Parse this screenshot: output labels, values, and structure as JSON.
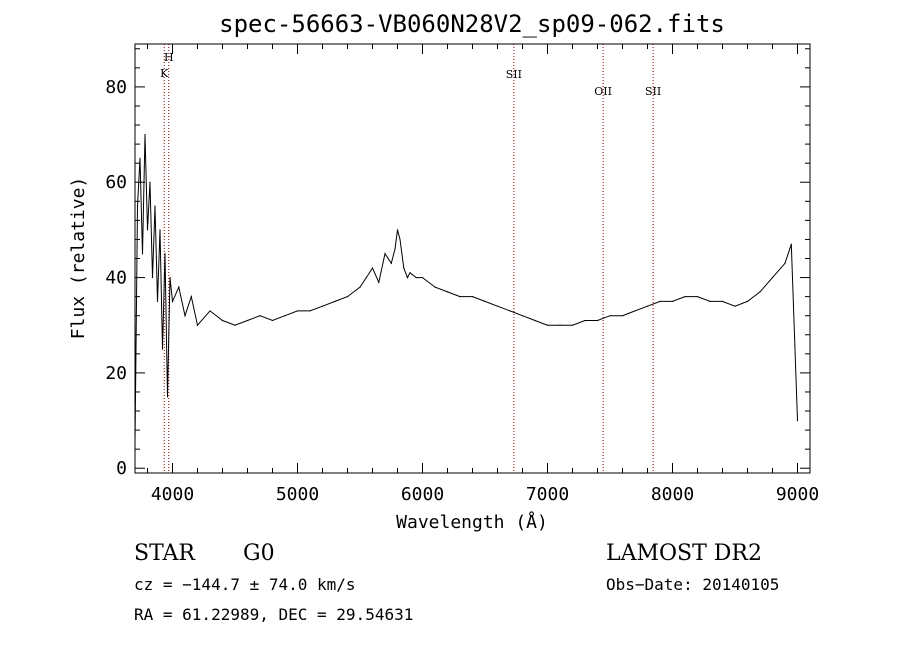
{
  "chart_data": {
    "type": "line",
    "title": "spec-56663-VB060N28V2_sp09-062.fits",
    "xlabel": "Wavelength (Å)",
    "ylabel": "Flux (relative)",
    "xlim": [
      3700,
      9100
    ],
    "ylim": [
      -1,
      89
    ],
    "xticks": [
      4000,
      5000,
      6000,
      7000,
      8000,
      9000
    ],
    "xtick_labels": [
      "4000",
      "5000",
      "6000",
      "7000",
      "8000",
      "9000"
    ],
    "yticks": [
      0,
      20,
      40,
      60,
      80
    ],
    "ytick_labels": [
      "0",
      "20",
      "40",
      "60",
      "80"
    ],
    "grid": false,
    "line_color": "#000000",
    "marker_color": "#8b0000",
    "spectral_lines": [
      {
        "label": "H",
        "wavelength": 3970
      },
      {
        "label": "K",
        "wavelength": 3934
      },
      {
        "label": "SII",
        "wavelength": 6731
      },
      {
        "label": "OII",
        "wavelength": 7445
      },
      {
        "label": "SII",
        "wavelength": 7845
      }
    ],
    "series": [
      {
        "x": [
          3700,
          3720,
          3740,
          3760,
          3780,
          3800,
          3820,
          3840,
          3860,
          3880,
          3900,
          3920,
          3940,
          3960,
          3980,
          4000,
          4050,
          4100,
          4150,
          4200,
          4300,
          4400,
          4500,
          4600,
          4700,
          4800,
          4900,
          5000,
          5100,
          5200,
          5300,
          5400,
          5500,
          5550,
          5600,
          5650,
          5700,
          5750,
          5780,
          5800,
          5820,
          5850,
          5880,
          5900,
          5950,
          6000,
          6100,
          6200,
          6300,
          6400,
          6500,
          6600,
          6700,
          6800,
          6900,
          7000,
          7100,
          7200,
          7300,
          7400,
          7500,
          7600,
          7700,
          7800,
          7900,
          8000,
          8100,
          8200,
          8300,
          8400,
          8500,
          8600,
          8700,
          8800,
          8900,
          8950,
          9000
        ],
        "y": [
          5,
          55,
          65,
          45,
          70,
          50,
          60,
          40,
          55,
          35,
          50,
          25,
          45,
          15,
          40,
          35,
          38,
          32,
          36,
          30,
          33,
          31,
          30,
          31,
          32,
          31,
          32,
          33,
          33,
          34,
          35,
          36,
          38,
          40,
          42,
          39,
          45,
          43,
          46,
          50,
          48,
          42,
          40,
          41,
          40,
          40,
          38,
          37,
          36,
          36,
          35,
          34,
          33,
          32,
          31,
          30,
          30,
          30,
          31,
          31,
          32,
          32,
          33,
          34,
          35,
          35,
          36,
          36,
          35,
          35,
          34,
          35,
          37,
          40,
          43,
          47,
          10
        ],
        "name": ""
      }
    ]
  },
  "info": {
    "class_label": "STAR",
    "subclass_label": "G0",
    "survey_label": "LAMOST DR2",
    "cz_text": "cz = −144.7 ± 74.0 km/s",
    "obs_date_text": "Obs−Date: 20140105",
    "radec_text": "RA =  61.22989, DEC =  29.54631"
  }
}
